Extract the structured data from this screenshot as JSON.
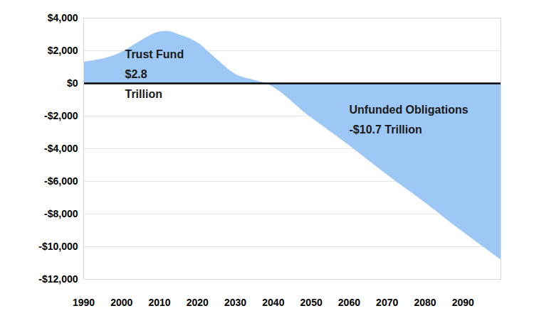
{
  "chart_data": {
    "type": "area",
    "x": [
      1990,
      2000,
      2005,
      2010,
      2012,
      2015,
      2020,
      2025,
      2030,
      2035,
      2038,
      2050,
      2060,
      2070,
      2080,
      2090,
      2100
    ],
    "values": [
      1300,
      1900,
      2600,
      3150,
      3200,
      3000,
      2500,
      1500,
      570,
      200,
      0,
      -2100,
      -3800,
      -5600,
      -7300,
      -9100,
      -10800
    ],
    "color": "#9dc8f5",
    "xlim": [
      1990,
      2100
    ],
    "xticks": [
      1990,
      2000,
      2010,
      2020,
      2030,
      2040,
      2050,
      2060,
      2070,
      2080,
      2090
    ],
    "ylim": [
      -12000,
      4000
    ],
    "yticks": [
      {
        "value": 4000,
        "label": "$4,000"
      },
      {
        "value": 2000,
        "label": "$2,000"
      },
      {
        "value": 0,
        "label": "$0"
      },
      {
        "value": -2000,
        "label": "-$2,000"
      },
      {
        "value": -4000,
        "label": "-$4,000"
      },
      {
        "value": -6000,
        "label": "-$6,000"
      },
      {
        "value": -8000,
        "label": "-$8,000"
      },
      {
        "value": -10000,
        "label": "-$10,000"
      },
      {
        "value": -12000,
        "label": "-$12,000"
      }
    ],
    "grid": true,
    "annotations": [
      {
        "text": "Trust Fund\n$2.8\nTrillion"
      },
      {
        "text": "Unfunded Obligations\n-$10.7 Trillion"
      }
    ]
  }
}
